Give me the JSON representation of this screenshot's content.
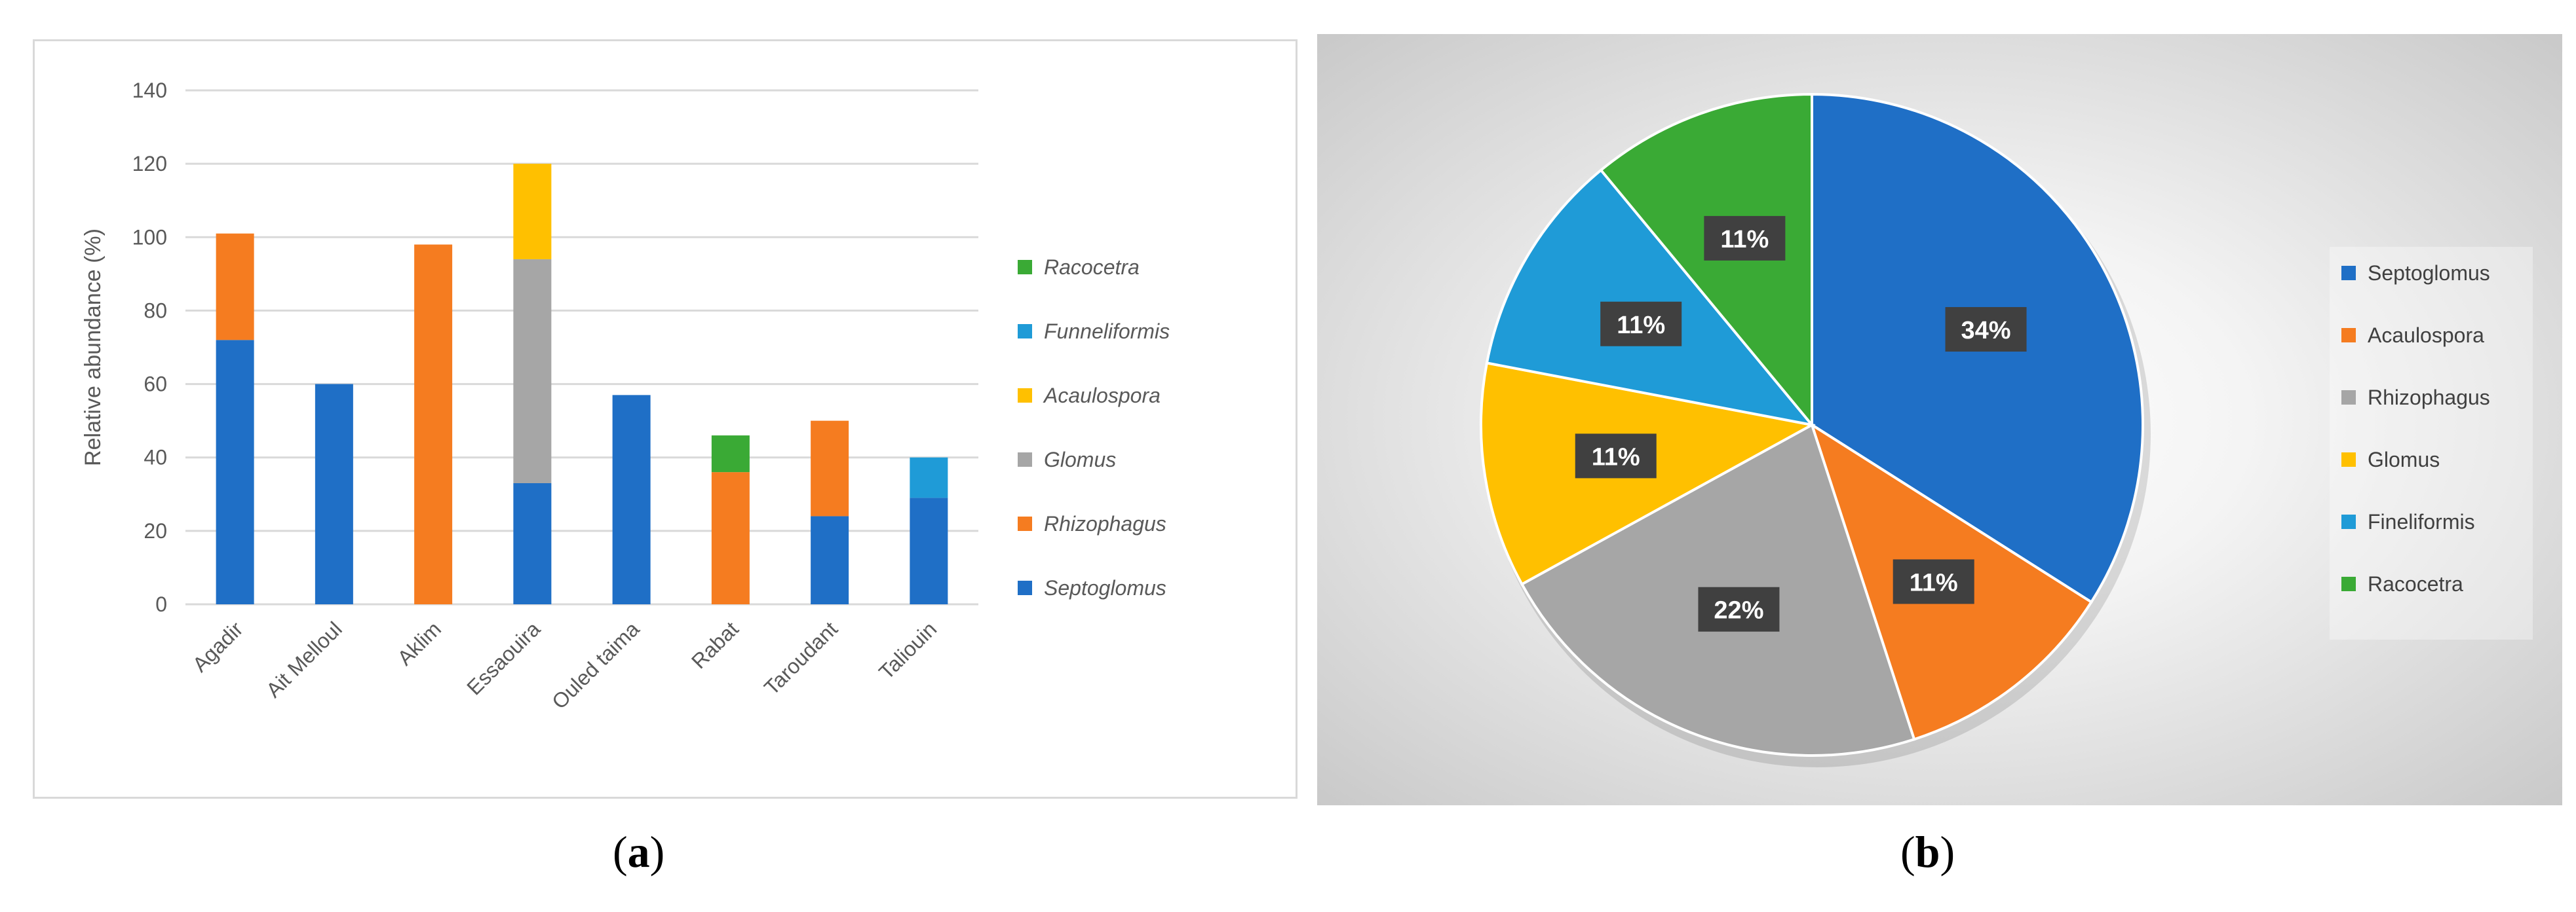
{
  "chart_data": [
    {
      "type": "bar",
      "stacked": true,
      "ylabel": "Relative abundance (%)",
      "ylim": [
        0,
        140
      ],
      "yticks": [
        0,
        20,
        40,
        60,
        80,
        100,
        120,
        140
      ],
      "grid": true,
      "legend_position": "right",
      "categories": [
        "Agadir",
        "Ait Melloul",
        "Aklim",
        "Essaouira",
        "Ouled taima",
        "Rabat",
        "Taroudant",
        "Taliouin"
      ],
      "series": [
        {
          "name": "Septoglomus",
          "color": "#1f6fc6",
          "values": [
            72,
            60,
            0,
            33,
            57,
            0,
            24,
            29
          ]
        },
        {
          "name": "Rhizophagus",
          "color": "#f57c20",
          "values": [
            29,
            0,
            98,
            0,
            0,
            36,
            26,
            0
          ]
        },
        {
          "name": "Glomus",
          "color": "#a6a6a6",
          "values": [
            0,
            0,
            0,
            61,
            0,
            0,
            0,
            0
          ]
        },
        {
          "name": "Acaulospora",
          "color": "#ffc000",
          "values": [
            0,
            0,
            0,
            26,
            0,
            0,
            0,
            0
          ]
        },
        {
          "name": "Funneliformis",
          "color": "#1f9bd7",
          "values": [
            0,
            0,
            0,
            0,
            0,
            0,
            0,
            11
          ]
        },
        {
          "name": "Racocetra",
          "color": "#3aaa35",
          "values": [
            0,
            0,
            0,
            0,
            0,
            10,
            0,
            0
          ]
        }
      ],
      "legend_order": [
        "Racocetra",
        "Funneliformis",
        "Acaulospora",
        "Glomus",
        "Rhizophagus",
        "Septoglomus"
      ]
    },
    {
      "type": "pie",
      "legend_position": "right",
      "slices": [
        {
          "name": "Septoglomus",
          "value": 34,
          "label": "34%",
          "color": "#1f6fc6"
        },
        {
          "name": "Acaulospora",
          "value": 11,
          "label": "11%",
          "color": "#f57c20"
        },
        {
          "name": "Rhizophagus",
          "value": 22,
          "label": "22%",
          "color": "#a6a6a6"
        },
        {
          "name": "Glomus",
          "value": 11,
          "label": "11%",
          "color": "#ffc000"
        },
        {
          "name": "Fineliformis",
          "value": 11,
          "label": "11%",
          "color": "#1f9bd7"
        },
        {
          "name": "Racocetra",
          "value": 11,
          "label": "11%",
          "color": "#3aaa35"
        }
      ]
    }
  ],
  "captions": {
    "a": {
      "open": "(",
      "letter": "a",
      "close": ")"
    },
    "b": {
      "open": "(",
      "letter": "b",
      "close": ")"
    }
  }
}
